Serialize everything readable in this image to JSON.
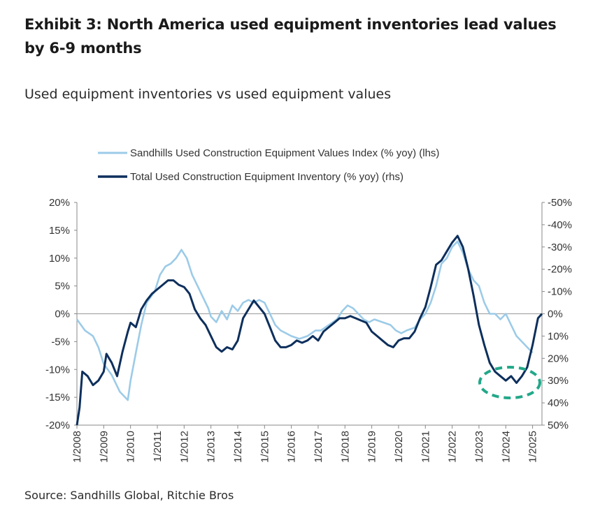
{
  "title": "Exhibit 3: North America used equipment inventories lead values by 6-9 months",
  "subtitle": "Used equipment inventories vs used equipment values",
  "source": "Source: Sandhills Global, Ritchie Bros",
  "colors": {
    "values_series": "#9ccbe8",
    "inventory_series": "#0d2f5c",
    "highlight": "#22a889",
    "zero_line": "#999999"
  },
  "chart_data": {
    "type": "line",
    "title": "Used equipment inventories vs used equipment values",
    "xlabel": "",
    "ylabel": "",
    "x_ticks": [
      "1/2008",
      "1/2009",
      "1/2010",
      "1/2011",
      "1/2012",
      "1/2013",
      "1/2014",
      "1/2015",
      "1/2016",
      "1/2017",
      "1/2018",
      "1/2019",
      "1/2020",
      "1/2021",
      "1/2022",
      "1/2023",
      "1/2024",
      "1/2025"
    ],
    "y_left_ticks": [
      "20%",
      "15%",
      "10%",
      "5%",
      "0%",
      "-5%",
      "-10%",
      "-15%",
      "-20%"
    ],
    "y_right_ticks": [
      "-50%",
      "-40%",
      "-30%",
      "-20%",
      "-10%",
      "0%",
      "10%",
      "20%",
      "30%",
      "40%",
      "50%"
    ],
    "y_left_range": [
      -20,
      20
    ],
    "y_right_range": [
      50,
      -50
    ],
    "x_range": [
      2008.0,
      2025.35
    ],
    "legend_position": "top",
    "series": [
      {
        "name": "Sandhills Used Construction Equipment Values Index (% yoy) (lhs)",
        "axis": "left",
        "points": [
          [
            2008.0,
            -1
          ],
          [
            2008.3,
            -3
          ],
          [
            2008.6,
            -4
          ],
          [
            2008.8,
            -6
          ],
          [
            2009.0,
            -9
          ],
          [
            2009.3,
            -11
          ],
          [
            2009.6,
            -14
          ],
          [
            2009.9,
            -15.5
          ],
          [
            2010.0,
            -12
          ],
          [
            2010.2,
            -7
          ],
          [
            2010.4,
            -2
          ],
          [
            2010.6,
            2
          ],
          [
            2010.9,
            4
          ],
          [
            2011.1,
            7
          ],
          [
            2011.3,
            8.5
          ],
          [
            2011.5,
            9
          ],
          [
            2011.7,
            10
          ],
          [
            2011.9,
            11.5
          ],
          [
            2012.1,
            10
          ],
          [
            2012.3,
            7
          ],
          [
            2012.5,
            5
          ],
          [
            2012.7,
            3
          ],
          [
            2012.9,
            1
          ],
          [
            2013.0,
            -0.5
          ],
          [
            2013.2,
            -1.5
          ],
          [
            2013.4,
            0.5
          ],
          [
            2013.6,
            -1
          ],
          [
            2013.8,
            1.5
          ],
          [
            2014.0,
            0.5
          ],
          [
            2014.2,
            2
          ],
          [
            2014.4,
            2.5
          ],
          [
            2014.6,
            2
          ],
          [
            2014.8,
            2.5
          ],
          [
            2015.0,
            2
          ],
          [
            2015.2,
            0
          ],
          [
            2015.4,
            -2
          ],
          [
            2015.6,
            -3
          ],
          [
            2015.8,
            -3.5
          ],
          [
            2016.0,
            -4
          ],
          [
            2016.3,
            -4.5
          ],
          [
            2016.6,
            -4
          ],
          [
            2016.9,
            -3
          ],
          [
            2017.1,
            -3
          ],
          [
            2017.4,
            -2
          ],
          [
            2017.7,
            -1
          ],
          [
            2017.9,
            0.5
          ],
          [
            2018.1,
            1.5
          ],
          [
            2018.3,
            1
          ],
          [
            2018.5,
            0
          ],
          [
            2018.7,
            -1
          ],
          [
            2018.9,
            -1.5
          ],
          [
            2019.1,
            -1
          ],
          [
            2019.4,
            -1.5
          ],
          [
            2019.7,
            -2
          ],
          [
            2019.9,
            -3
          ],
          [
            2020.1,
            -3.5
          ],
          [
            2020.3,
            -3
          ],
          [
            2020.6,
            -2.5
          ],
          [
            2020.8,
            -1
          ],
          [
            2021.0,
            0
          ],
          [
            2021.2,
            2
          ],
          [
            2021.4,
            5
          ],
          [
            2021.6,
            9
          ],
          [
            2021.8,
            10
          ],
          [
            2022.0,
            12
          ],
          [
            2022.2,
            13
          ],
          [
            2022.4,
            11
          ],
          [
            2022.6,
            8
          ],
          [
            2022.8,
            6
          ],
          [
            2023.0,
            5
          ],
          [
            2023.2,
            2
          ],
          [
            2023.4,
            0
          ],
          [
            2023.6,
            0
          ],
          [
            2023.8,
            -1
          ],
          [
            2024.0,
            0
          ],
          [
            2024.2,
            -2
          ],
          [
            2024.4,
            -4
          ],
          [
            2024.6,
            -5
          ],
          [
            2024.8,
            -6
          ],
          [
            2025.0,
            -7
          ]
        ]
      },
      {
        "name": "Total Used Construction Equipment Inventory (% yoy) (rhs)",
        "axis": "right",
        "points": [
          [
            2008.0,
            50
          ],
          [
            2008.1,
            42
          ],
          [
            2008.2,
            26
          ],
          [
            2008.4,
            28
          ],
          [
            2008.6,
            32
          ],
          [
            2008.8,
            30
          ],
          [
            2009.0,
            26
          ],
          [
            2009.1,
            18
          ],
          [
            2009.3,
            22
          ],
          [
            2009.5,
            28
          ],
          [
            2009.7,
            17
          ],
          [
            2009.9,
            8
          ],
          [
            2010.0,
            4
          ],
          [
            2010.2,
            6
          ],
          [
            2010.4,
            -2
          ],
          [
            2010.6,
            -6
          ],
          [
            2010.8,
            -9
          ],
          [
            2011.0,
            -11
          ],
          [
            2011.2,
            -13
          ],
          [
            2011.4,
            -15
          ],
          [
            2011.6,
            -15
          ],
          [
            2011.8,
            -13
          ],
          [
            2012.0,
            -12
          ],
          [
            2012.2,
            -9
          ],
          [
            2012.4,
            -2
          ],
          [
            2012.6,
            2
          ],
          [
            2012.8,
            5
          ],
          [
            2013.0,
            10
          ],
          [
            2013.2,
            15
          ],
          [
            2013.4,
            17
          ],
          [
            2013.6,
            15
          ],
          [
            2013.8,
            16
          ],
          [
            2014.0,
            12
          ],
          [
            2014.2,
            2
          ],
          [
            2014.4,
            -2
          ],
          [
            2014.6,
            -6
          ],
          [
            2014.8,
            -3
          ],
          [
            2015.0,
            0
          ],
          [
            2015.2,
            6
          ],
          [
            2015.4,
            12
          ],
          [
            2015.6,
            15
          ],
          [
            2015.8,
            15
          ],
          [
            2016.0,
            14
          ],
          [
            2016.2,
            12
          ],
          [
            2016.4,
            13
          ],
          [
            2016.6,
            12
          ],
          [
            2016.8,
            10
          ],
          [
            2017.0,
            12
          ],
          [
            2017.2,
            8
          ],
          [
            2017.4,
            6
          ],
          [
            2017.6,
            4
          ],
          [
            2017.8,
            2
          ],
          [
            2018.0,
            2
          ],
          [
            2018.2,
            1
          ],
          [
            2018.4,
            2
          ],
          [
            2018.6,
            3
          ],
          [
            2018.8,
            4
          ],
          [
            2019.0,
            8
          ],
          [
            2019.2,
            10
          ],
          [
            2019.4,
            12
          ],
          [
            2019.6,
            14
          ],
          [
            2019.8,
            15
          ],
          [
            2020.0,
            12
          ],
          [
            2020.2,
            11
          ],
          [
            2020.4,
            11
          ],
          [
            2020.6,
            8
          ],
          [
            2020.8,
            2
          ],
          [
            2021.0,
            -3
          ],
          [
            2021.2,
            -12
          ],
          [
            2021.4,
            -22
          ],
          [
            2021.6,
            -24
          ],
          [
            2021.8,
            -28
          ],
          [
            2022.0,
            -32
          ],
          [
            2022.2,
            -35
          ],
          [
            2022.4,
            -30
          ],
          [
            2022.6,
            -20
          ],
          [
            2022.8,
            -8
          ],
          [
            2023.0,
            5
          ],
          [
            2023.2,
            14
          ],
          [
            2023.4,
            22
          ],
          [
            2023.6,
            26
          ],
          [
            2023.8,
            28
          ],
          [
            2024.0,
            30
          ],
          [
            2024.2,
            28
          ],
          [
            2024.4,
            31
          ],
          [
            2024.6,
            28
          ],
          [
            2024.8,
            24
          ],
          [
            2025.0,
            14
          ],
          [
            2025.2,
            2
          ],
          [
            2025.35,
            0
          ]
        ]
      }
    ],
    "annotation": {
      "shape": "dashed-ellipse",
      "around": "inventory trough 2023-2024"
    }
  }
}
